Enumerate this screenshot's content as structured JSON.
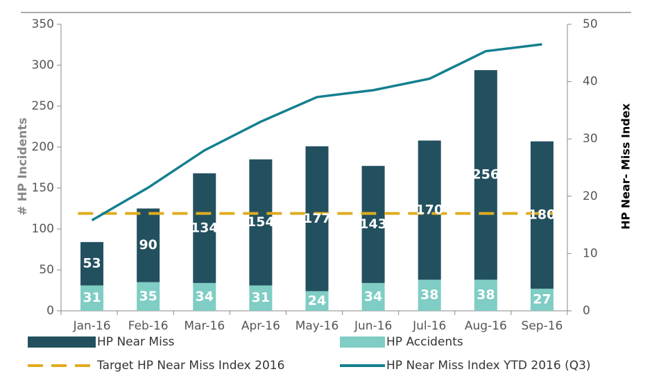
{
  "chart_data": {
    "type": "bar",
    "categories": [
      "Jan-16",
      "Feb-16",
      "Mar-16",
      "Apr-16",
      "May-16",
      "Jun-16",
      "Jul-16",
      "Aug-16",
      "Sep-16"
    ],
    "series": [
      {
        "name": "HP Accidents",
        "color": "#7fcdc4",
        "values": [
          31,
          35,
          34,
          31,
          24,
          34,
          38,
          38,
          27
        ]
      },
      {
        "name": "HP Near Miss",
        "color": "#23505f",
        "values": [
          53,
          90,
          134,
          154,
          177,
          143,
          170,
          256,
          180
        ]
      },
      {
        "name": "Target HP Near Miss Index  2016",
        "color": "#e0ac1f",
        "axis": "y2",
        "dashed": true,
        "values": [
          17,
          17,
          17,
          17,
          17,
          17,
          17,
          17,
          17
        ]
      },
      {
        "name": "HP Near Miss Index  YTD 2016 (Q3)",
        "color": "#137f8f",
        "axis": "y2",
        "values": [
          15.8,
          21.5,
          28,
          33,
          37.3,
          38.5,
          40.5,
          45.3,
          46.5
        ]
      }
    ],
    "y_label": "# HP Incidents",
    "y2_label": "HP Near- Miss Index",
    "ylim": [
      0,
      350
    ],
    "yticks": [
      0,
      50,
      100,
      150,
      200,
      250,
      300,
      350
    ],
    "y2lim": [
      0,
      50
    ],
    "y2ticks": [
      0,
      10,
      20,
      30,
      40,
      50
    ]
  }
}
